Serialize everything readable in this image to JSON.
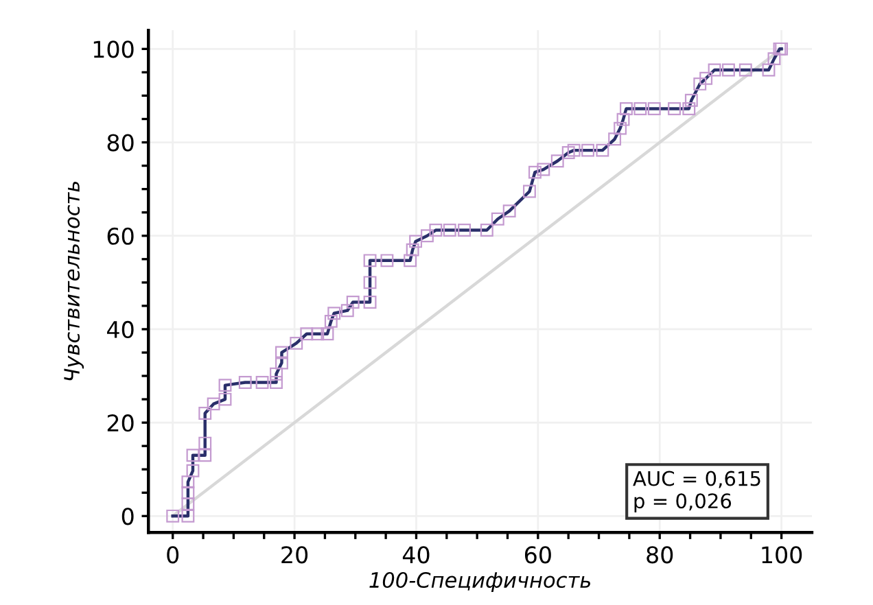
{
  "chart_data": {
    "type": "line",
    "xlabel": "100-Специфичность",
    "ylabel": "Чувствительность",
    "xlim": [
      -4,
      105
    ],
    "ylim": [
      -3.5,
      104
    ],
    "xticks": [
      0,
      {
        "value": 5,
        "label": null
      },
      {
        "value": 10,
        "label": null
      },
      {
        "value": 15,
        "label": null
      },
      20,
      {
        "value": 25,
        "label": null
      },
      {
        "value": 30,
        "label": null
      },
      {
        "value": 35,
        "label": null
      },
      40,
      {
        "value": 45,
        "label": null
      },
      {
        "value": 50,
        "label": null
      },
      {
        "value": 55,
        "label": null
      },
      60,
      {
        "value": 65,
        "label": null
      },
      {
        "value": 70,
        "label": null
      },
      {
        "value": 75,
        "label": null
      },
      80,
      {
        "value": 85,
        "label": null
      },
      {
        "value": 90,
        "label": null
      },
      {
        "value": 95,
        "label": null
      },
      100
    ],
    "yticks": [
      0,
      {
        "value": 5,
        "label": null
      },
      {
        "value": 10,
        "label": null
      },
      {
        "value": 15,
        "label": null
      },
      20,
      {
        "value": 25,
        "label": null
      },
      {
        "value": 30,
        "label": null
      },
      {
        "value": 35,
        "label": null
      },
      40,
      {
        "value": 45,
        "label": null
      },
      {
        "value": 50,
        "label": null
      },
      {
        "value": 55,
        "label": null
      },
      60,
      {
        "value": 65,
        "label": null
      },
      {
        "value": 70,
        "label": null
      },
      {
        "value": 75,
        "label": null
      },
      80,
      {
        "value": 85,
        "label": null
      },
      {
        "value": 90,
        "label": null
      },
      {
        "value": 95,
        "label": null
      },
      100
    ],
    "grid": true,
    "marker": "square",
    "line_style": "solid",
    "series": [
      {
        "color": "#2a2f6a",
        "x": [
          0,
          2.5,
          2.5,
          2.5,
          2.5,
          3.3,
          3.3,
          5.3,
          5.3,
          5.3,
          6.7,
          8.6,
          8.6,
          11.9,
          14.7,
          17,
          17,
          17.9,
          17.9,
          20.3,
          22,
          23.8,
          25.4,
          26,
          26.5,
          28.7,
          29.6,
          32.4,
          32.4,
          32.4,
          35.2,
          39,
          39.4,
          39.9,
          41.8,
          43.2,
          45.5,
          47.9,
          51.6,
          53.4,
          55.3,
          58.6,
          59.5,
          60.9,
          63.2,
          65,
          65.9,
          68.2,
          70.6,
          72.6,
          73.5,
          74,
          74.5,
          76.8,
          79.1,
          82.4,
          84.8,
          85.2,
          86.6,
          87.6,
          89,
          91.3,
          94.1,
          97.9,
          98.8,
          99.7,
          100
        ],
        "values": [
          0,
          0,
          2.6,
          5,
          7.3,
          9.7,
          13,
          13,
          15.6,
          22,
          24,
          25,
          28,
          28.6,
          28.6,
          28.6,
          30.4,
          32.8,
          35,
          37,
          39,
          39,
          39,
          41.7,
          43.4,
          44,
          45.8,
          45.8,
          50,
          54.7,
          54.7,
          54.7,
          57,
          58.8,
          60,
          61.2,
          61.2,
          61.2,
          61.2,
          63.6,
          65.3,
          69.5,
          73.6,
          74.2,
          76,
          77.8,
          78.3,
          78.3,
          78.3,
          80.7,
          83,
          84.9,
          87.2,
          87.2,
          87.2,
          87.2,
          87.2,
          89,
          92.5,
          93.7,
          95.5,
          95.5,
          95.5,
          95.5,
          97.9,
          100,
          100
        ]
      },
      {
        "color": "#d8d8d8",
        "marker": "none",
        "x": [
          0,
          100
        ],
        "values": [
          0,
          100
        ]
      }
    ],
    "annotations": [
      "AUC = 0,615\np = 0,026"
    ]
  }
}
